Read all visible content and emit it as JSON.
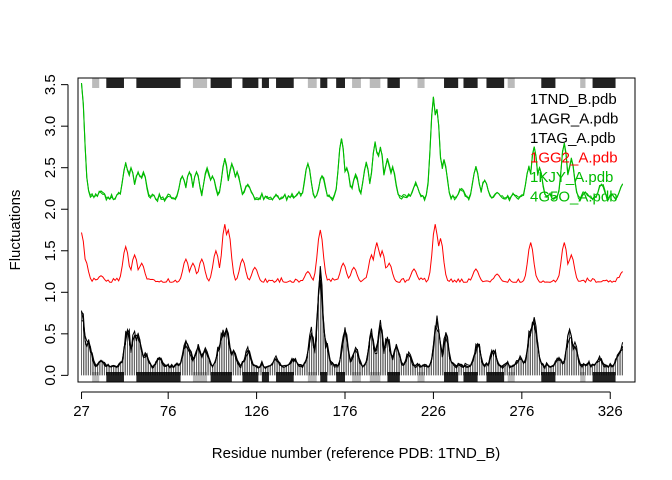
{
  "chart_data": {
    "type": "line",
    "xlabel": "Residue number (reference PDB: 1TND_B)",
    "ylabel": "Fluctuations",
    "xlim": [
      25,
      340
    ],
    "ylim": [
      -0.08,
      3.58
    ],
    "x_ticks": [
      27,
      76,
      126,
      176,
      226,
      276,
      326
    ],
    "y_ticks": [
      0.0,
      0.5,
      1.0,
      1.5,
      2.0,
      2.5,
      3.0,
      3.5
    ],
    "y_tick_labels": [
      "0.0",
      "0.5",
      "1.0",
      "1.5",
      "2.0",
      "2.5",
      "3.0",
      "3.5"
    ],
    "grid": false,
    "legend_position": "top-right",
    "legend": [
      {
        "label": "1TND_B.pdb",
        "color": "#000000"
      },
      {
        "label": "1AGR_A.pdb",
        "color": "#000000"
      },
      {
        "label": "1TAG_A.pdb",
        "color": "#000000"
      },
      {
        "label": "1GG2_A.pdb",
        "color": "#ff0000"
      },
      {
        "label": "1KJY_A.pdb",
        "color": "#00bb00"
      },
      {
        "label": "4G5O_A.pdb",
        "color": "#00bb00"
      }
    ],
    "sse_bars": [
      {
        "start": 33,
        "end": 37,
        "kind": "sheet"
      },
      {
        "start": 41,
        "end": 51,
        "kind": "helix"
      },
      {
        "start": 58,
        "end": 83,
        "kind": "helix"
      },
      {
        "start": 90,
        "end": 98,
        "kind": "sheet"
      },
      {
        "start": 100,
        "end": 112,
        "kind": "helix"
      },
      {
        "start": 118,
        "end": 127,
        "kind": "helix"
      },
      {
        "start": 129,
        "end": 133,
        "kind": "helix"
      },
      {
        "start": 137,
        "end": 147,
        "kind": "helix"
      },
      {
        "start": 155,
        "end": 160,
        "kind": "sheet"
      },
      {
        "start": 162,
        "end": 166,
        "kind": "helix"
      },
      {
        "start": 171,
        "end": 176,
        "kind": "helix"
      },
      {
        "start": 180,
        "end": 185,
        "kind": "sheet"
      },
      {
        "start": 190,
        "end": 196,
        "kind": "sheet"
      },
      {
        "start": 200,
        "end": 207,
        "kind": "helix"
      },
      {
        "start": 217,
        "end": 221,
        "kind": "sheet"
      },
      {
        "start": 232,
        "end": 240,
        "kind": "helix"
      },
      {
        "start": 243,
        "end": 251,
        "kind": "helix"
      },
      {
        "start": 256,
        "end": 266,
        "kind": "helix"
      },
      {
        "start": 268,
        "end": 272,
        "kind": "sheet"
      },
      {
        "start": 287,
        "end": 295,
        "kind": "helix"
      },
      {
        "start": 309,
        "end": 312,
        "kind": "sheet"
      },
      {
        "start": 316,
        "end": 329,
        "kind": "helix"
      }
    ],
    "sse_colors": {
      "helix": "#222222",
      "sheet": "#bbbbbb"
    },
    "series_peaks": {
      "black": [
        [
          27,
          0.78
        ],
        [
          31,
          0.4
        ],
        [
          38,
          0.18
        ],
        [
          50,
          0.15
        ],
        [
          53,
          0.55
        ],
        [
          57,
          0.48
        ],
        [
          59,
          0.5
        ],
        [
          63,
          0.25
        ],
        [
          71,
          0.2
        ],
        [
          86,
          0.42
        ],
        [
          88,
          0.3
        ],
        [
          93,
          0.34
        ],
        [
          97,
          0.3
        ],
        [
          105,
          0.32
        ],
        [
          107,
          0.5
        ],
        [
          109,
          0.55
        ],
        [
          113,
          0.3
        ],
        [
          121,
          0.3
        ],
        [
          137,
          0.2
        ],
        [
          147,
          0.2
        ],
        [
          157,
          0.5
        ],
        [
          162,
          1.15
        ],
        [
          165,
          0.4
        ],
        [
          176,
          0.52
        ],
        [
          182,
          0.3
        ],
        [
          191,
          0.5
        ],
        [
          196,
          0.58
        ],
        [
          200,
          0.45
        ],
        [
          205,
          0.35
        ],
        [
          212,
          0.25
        ],
        [
          228,
          0.65
        ],
        [
          233,
          0.45
        ],
        [
          251,
          0.38
        ],
        [
          260,
          0.3
        ],
        [
          275,
          0.2
        ],
        [
          281,
          0.55
        ],
        [
          283,
          0.7
        ],
        [
          297,
          0.2
        ],
        [
          303,
          0.55
        ],
        [
          306,
          0.35
        ],
        [
          320,
          0.2
        ],
        [
          331,
          0.25
        ],
        [
          333,
          0.35
        ]
      ],
      "red": [
        [
          27,
          1.72
        ],
        [
          29,
          1.4
        ],
        [
          38,
          1.2
        ],
        [
          52,
          1.55
        ],
        [
          57,
          1.45
        ],
        [
          61,
          1.35
        ],
        [
          86,
          1.4
        ],
        [
          90,
          1.35
        ],
        [
          95,
          1.4
        ],
        [
          103,
          1.5
        ],
        [
          108,
          1.82
        ],
        [
          110,
          1.75
        ],
        [
          118,
          1.4
        ],
        [
          125,
          1.3
        ],
        [
          155,
          1.25
        ],
        [
          162,
          1.75
        ],
        [
          175,
          1.35
        ],
        [
          181,
          1.3
        ],
        [
          191,
          1.45
        ],
        [
          194,
          1.6
        ],
        [
          197,
          1.5
        ],
        [
          201,
          1.35
        ],
        [
          215,
          1.28
        ],
        [
          227,
          1.82
        ],
        [
          230,
          1.65
        ],
        [
          250,
          1.28
        ],
        [
          262,
          1.22
        ],
        [
          281,
          1.6
        ],
        [
          300,
          1.6
        ],
        [
          304,
          1.45
        ],
        [
          333,
          1.25
        ]
      ],
      "green": [
        [
          27,
          3.52
        ],
        [
          28,
          2.7
        ],
        [
          38,
          2.22
        ],
        [
          52,
          2.55
        ],
        [
          55,
          2.5
        ],
        [
          59,
          2.45
        ],
        [
          62,
          2.45
        ],
        [
          84,
          2.4
        ],
        [
          88,
          2.45
        ],
        [
          92,
          2.45
        ],
        [
          98,
          2.5
        ],
        [
          101,
          2.4
        ],
        [
          108,
          2.6
        ],
        [
          112,
          2.55
        ],
        [
          115,
          2.45
        ],
        [
          121,
          2.3
        ],
        [
          150,
          2.2
        ],
        [
          155,
          2.55
        ],
        [
          163,
          2.4
        ],
        [
          174,
          2.85
        ],
        [
          177,
          2.5
        ],
        [
          182,
          2.4
        ],
        [
          188,
          2.55
        ],
        [
          193,
          2.8
        ],
        [
          196,
          2.75
        ],
        [
          200,
          2.6
        ],
        [
          203,
          2.5
        ],
        [
          216,
          2.3
        ],
        [
          226,
          3.35
        ],
        [
          228,
          3.2
        ],
        [
          232,
          2.6
        ],
        [
          242,
          2.25
        ],
        [
          250,
          2.5
        ],
        [
          255,
          2.35
        ],
        [
          262,
          2.2
        ],
        [
          280,
          2.5
        ],
        [
          283,
          2.75
        ],
        [
          286,
          2.5
        ],
        [
          300,
          2.8
        ],
        [
          304,
          2.6
        ],
        [
          312,
          2.2
        ],
        [
          321,
          2.3
        ],
        [
          333,
          2.3
        ]
      ]
    },
    "series_baselines": {
      "black": 0.1,
      "red": 1.12,
      "green": 2.12
    }
  }
}
